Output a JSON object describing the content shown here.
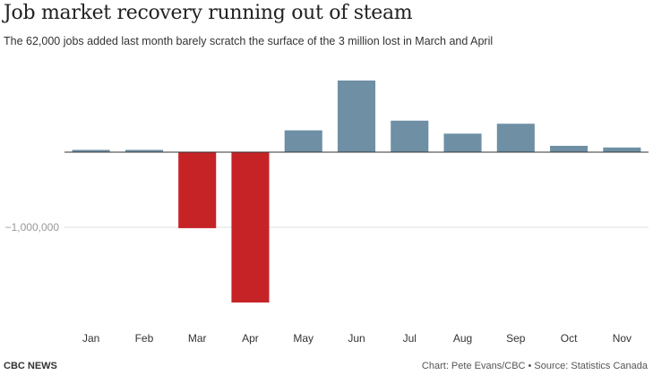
{
  "title": "Job market recovery running out of steam",
  "subtitle": "The 62,000 jobs added last month barely scratch the surface of the 3 million lost in March and April",
  "footer": {
    "brand": "CBC NEWS",
    "credit": "Chart: Pete Evans/CBC • Source: Statistics Canada"
  },
  "colors": {
    "positive": "#6e8fa4",
    "negative": "#c62327",
    "baseline": "#333333",
    "grid": "#e0e0e0",
    "tick_text": "#999999",
    "label_text": "#333333"
  },
  "chart_data": {
    "type": "bar",
    "title": "Job market recovery running out of steam",
    "xlabel": "",
    "ylabel": "",
    "categories": [
      "Jan",
      "Feb",
      "Mar",
      "Apr",
      "May",
      "Jun",
      "Jul",
      "Aug",
      "Sep",
      "Oct",
      "Nov"
    ],
    "values": [
      30000,
      30000,
      -1011000,
      -2000000,
      290000,
      953000,
      419000,
      246000,
      378000,
      84000,
      62000
    ],
    "ylim": [
      -2100000,
      1050000
    ],
    "yticks": [
      {
        "value": -1000000,
        "label": "−1,000,000"
      }
    ],
    "grid": true,
    "legend": "none"
  }
}
